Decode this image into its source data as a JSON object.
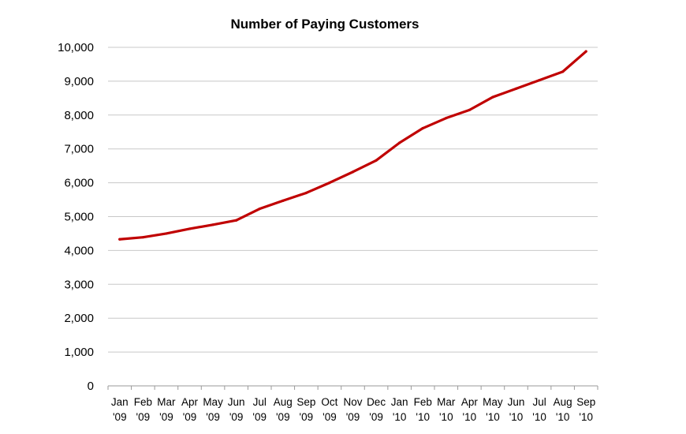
{
  "chart_data": {
    "type": "line",
    "title": "Number of Paying Customers",
    "xlabel": "",
    "ylabel": "",
    "ylim": [
      0,
      10000
    ],
    "yticks": [
      0,
      1000,
      2000,
      3000,
      4000,
      5000,
      6000,
      7000,
      8000,
      9000,
      10000
    ],
    "ytick_labels": [
      "0",
      "1,000",
      "2,000",
      "3,000",
      "4,000",
      "5,000",
      "6,000",
      "7,000",
      "8,000",
      "9,000",
      "10,000"
    ],
    "grid": true,
    "legend": "none",
    "categories": [
      {
        "month": "Jan",
        "year": "'09"
      },
      {
        "month": "Feb",
        "year": "'09"
      },
      {
        "month": "Mar",
        "year": "'09"
      },
      {
        "month": "Apr",
        "year": "'09"
      },
      {
        "month": "May",
        "year": "'09"
      },
      {
        "month": "Jun",
        "year": "'09"
      },
      {
        "month": "Jul",
        "year": "'09"
      },
      {
        "month": "Aug",
        "year": "'09"
      },
      {
        "month": "Sep",
        "year": "'09"
      },
      {
        "month": "Oct",
        "year": "'09"
      },
      {
        "month": "Nov",
        "year": "'09"
      },
      {
        "month": "Dec",
        "year": "'09"
      },
      {
        "month": "Jan",
        "year": "'10"
      },
      {
        "month": "Feb",
        "year": "'10"
      },
      {
        "month": "Mar",
        "year": "'10"
      },
      {
        "month": "Apr",
        "year": "'10"
      },
      {
        "month": "May",
        "year": "'10"
      },
      {
        "month": "Jun",
        "year": "'10"
      },
      {
        "month": "Jul",
        "year": "'10"
      },
      {
        "month": "Aug",
        "year": "'10"
      },
      {
        "month": "Sep",
        "year": "'10"
      }
    ],
    "series": [
      {
        "name": "Number of Paying Customers",
        "color": "#c00000",
        "values": [
          4330,
          4390,
          4500,
          4640,
          4760,
          4890,
          5230,
          5470,
          5700,
          6000,
          6320,
          6660,
          7180,
          7610,
          7910,
          8150,
          8530,
          8780,
          9030,
          9280,
          9880
        ]
      }
    ],
    "colors": {
      "line": "#c00000",
      "grid": "#c8c8c8",
      "axis": "#999999",
      "text": "#000000"
    }
  }
}
